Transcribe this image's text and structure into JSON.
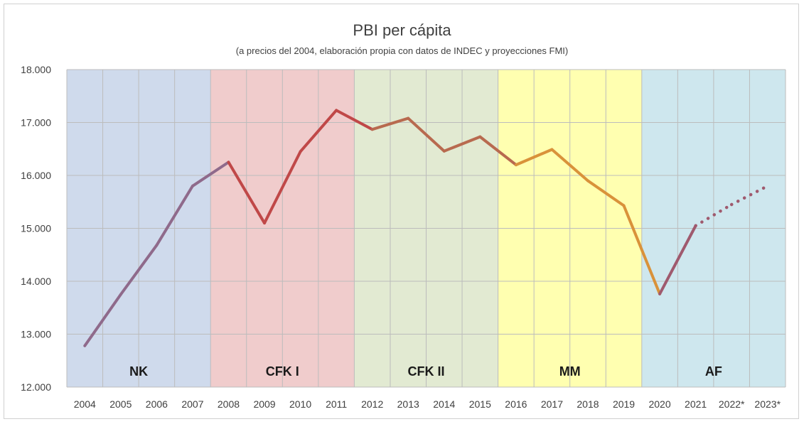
{
  "chart_data": {
    "type": "line",
    "title": "PBI per cápita",
    "subtitle": "(a precios del 2004, elaboración propia con datos de INDEC y proyecciones FMI)",
    "xlabel": "",
    "ylabel": "",
    "ylim": [
      12000,
      18000
    ],
    "y_ticks": [
      12000,
      13000,
      14000,
      15000,
      16000,
      17000,
      18000
    ],
    "y_tick_labels": [
      "12.000",
      "13.000",
      "14.000",
      "15.000",
      "16.000",
      "17.000",
      "18.000"
    ],
    "categories": [
      "2004",
      "2005",
      "2006",
      "2007",
      "2008",
      "2009",
      "2010",
      "2011",
      "2012",
      "2013",
      "2014",
      "2015",
      "2016",
      "2017",
      "2018",
      "2019",
      "2020",
      "2021",
      "2022*",
      "2023*"
    ],
    "values": [
      12780,
      13750,
      14680,
      15800,
      16250,
      15100,
      16450,
      17230,
      16870,
      17080,
      16460,
      16730,
      16200,
      16490,
      15900,
      15430,
      13760,
      15050,
      15450,
      15800
    ],
    "projected_from_index": 17,
    "grid": true,
    "periods": [
      {
        "label": "NK",
        "start": 0,
        "end": 3,
        "color": "#cfdaec"
      },
      {
        "label": "CFK I",
        "start": 4,
        "end": 7,
        "color": "#f0cccc"
      },
      {
        "label": "CFK II",
        "start": 8,
        "end": 11,
        "color": "#e2ead2"
      },
      {
        "label": "MM",
        "start": 12,
        "end": 15,
        "color": "#ffffb0"
      },
      {
        "label": "AF",
        "start": 16,
        "end": 19,
        "color": "#cee7ee"
      }
    ],
    "segment_colors": [
      "#8f6a8b",
      "#c04848",
      "#b86a4f",
      "#d9923a",
      "#9f5a6e"
    ],
    "projection_color": "#9f5a6e"
  }
}
